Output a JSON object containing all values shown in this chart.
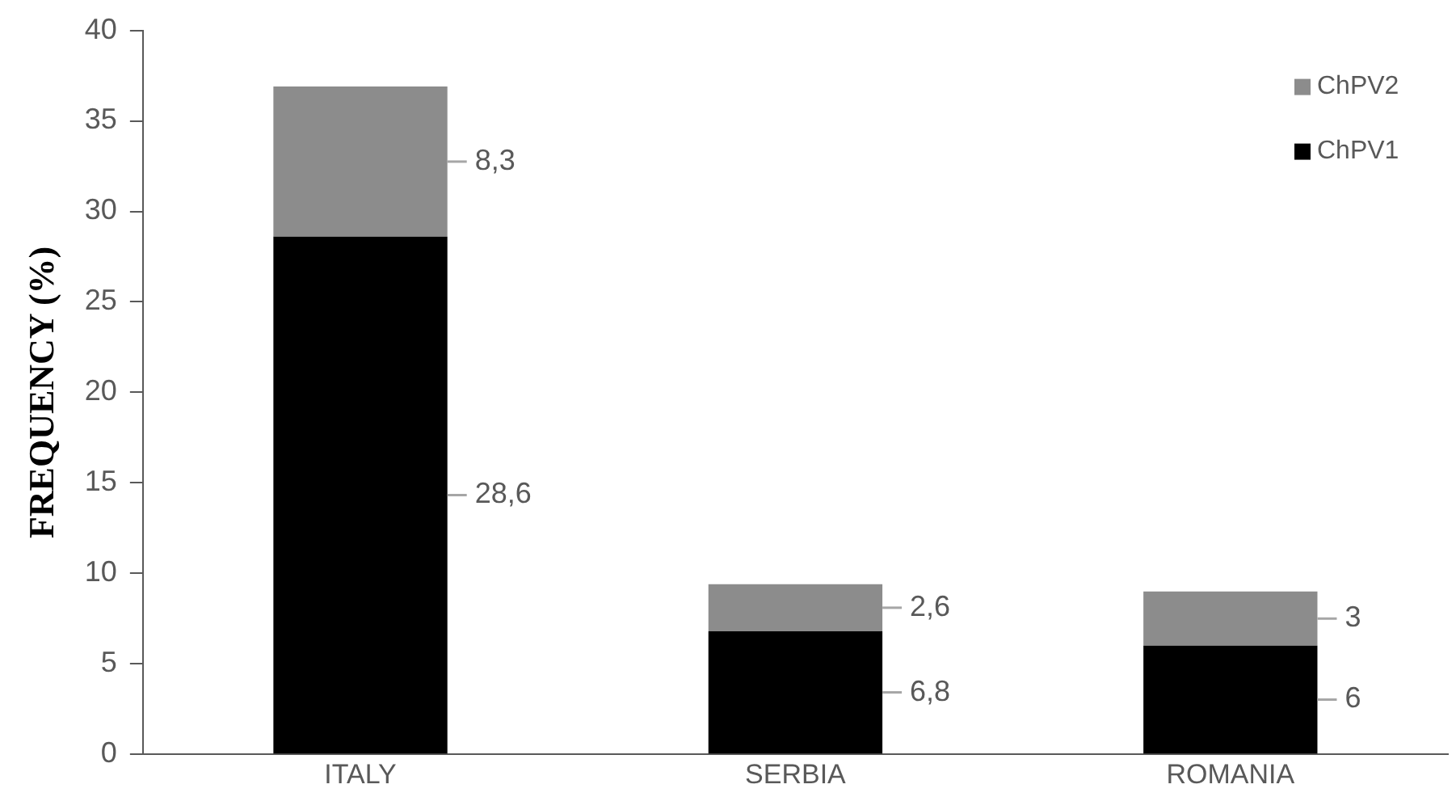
{
  "chart_data": {
    "type": "bar",
    "stacked": true,
    "ylabel": "FREQUENCY (%)",
    "categories": [
      "ITALY",
      "SERBIA",
      "ROMANIA"
    ],
    "series": [
      {
        "name": "ChPV1",
        "color": "#000000",
        "values": [
          28.6,
          6.8,
          6
        ],
        "value_labels": [
          "28,6",
          "6,8",
          "6"
        ]
      },
      {
        "name": "ChPV2",
        "color": "#8c8c8c",
        "values": [
          8.3,
          2.6,
          3
        ],
        "value_labels": [
          "8,3",
          "2,6",
          "3"
        ]
      }
    ],
    "ylim": [
      0,
      40
    ],
    "yticks": [
      0,
      5,
      10,
      15,
      20,
      25,
      30,
      35,
      40
    ],
    "grid": false,
    "legend": "top right"
  }
}
